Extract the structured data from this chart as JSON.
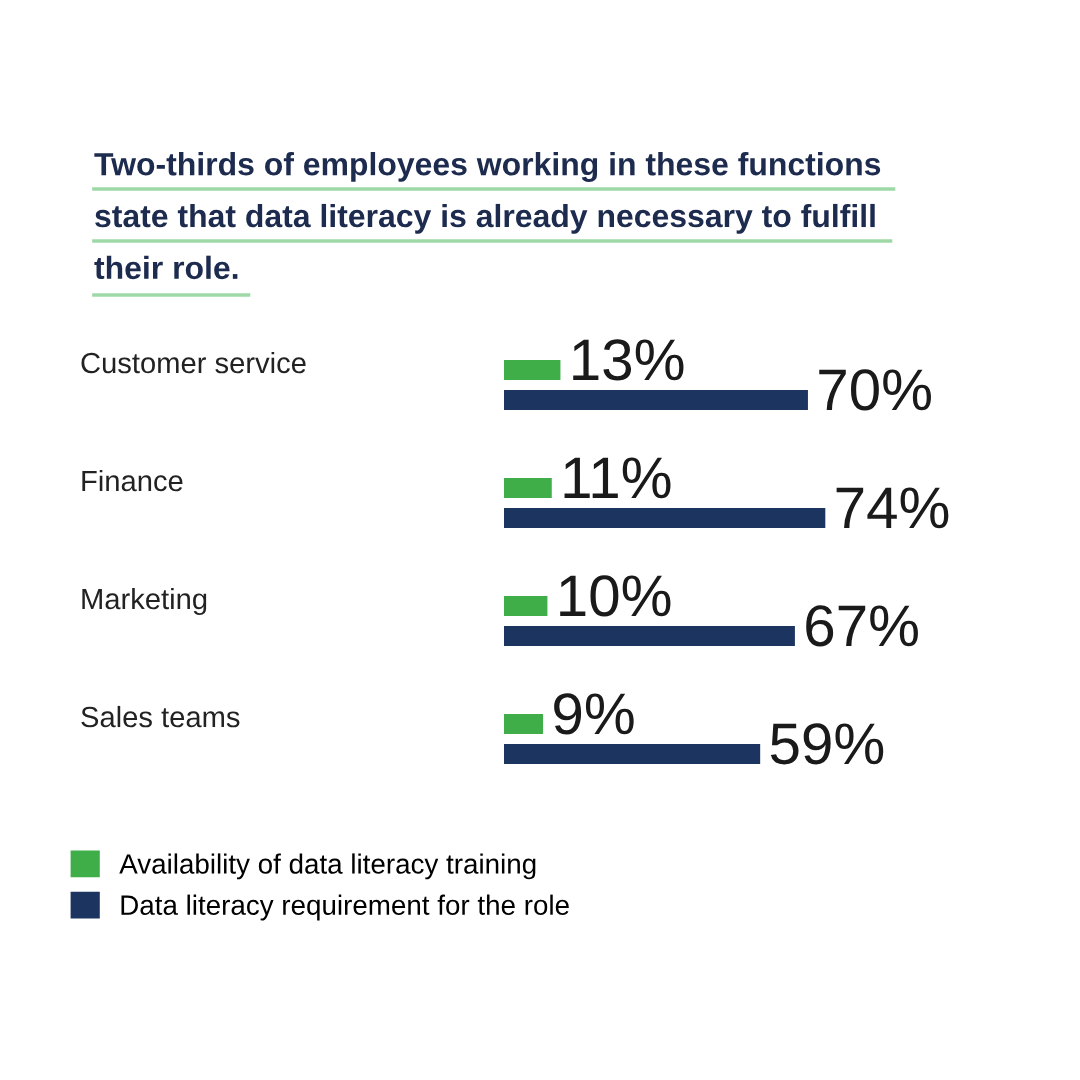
{
  "chart_data": {
    "type": "bar",
    "orientation": "horizontal",
    "title": "Two-thirds of employees working in these functions\nstate that data literacy is already necessary to fulfill\ntheir role.",
    "categories": [
      "Customer service",
      "Finance",
      "Marketing",
      "Sales teams"
    ],
    "series": [
      {
        "name": "Availability of data literacy training",
        "color": "#3fae49",
        "values": [
          13,
          11,
          10,
          9
        ],
        "value_labels": [
          "13%",
          "11%",
          "10%",
          "9%"
        ]
      },
      {
        "name": "Data literacy requirement for the role",
        "color": "#1c3460",
        "values": [
          70,
          74,
          67,
          59
        ],
        "value_labels": [
          "70%",
          "74%",
          "67%",
          "59%"
        ]
      }
    ],
    "legend": "bottom left",
    "tick_labels": "y"
  }
}
